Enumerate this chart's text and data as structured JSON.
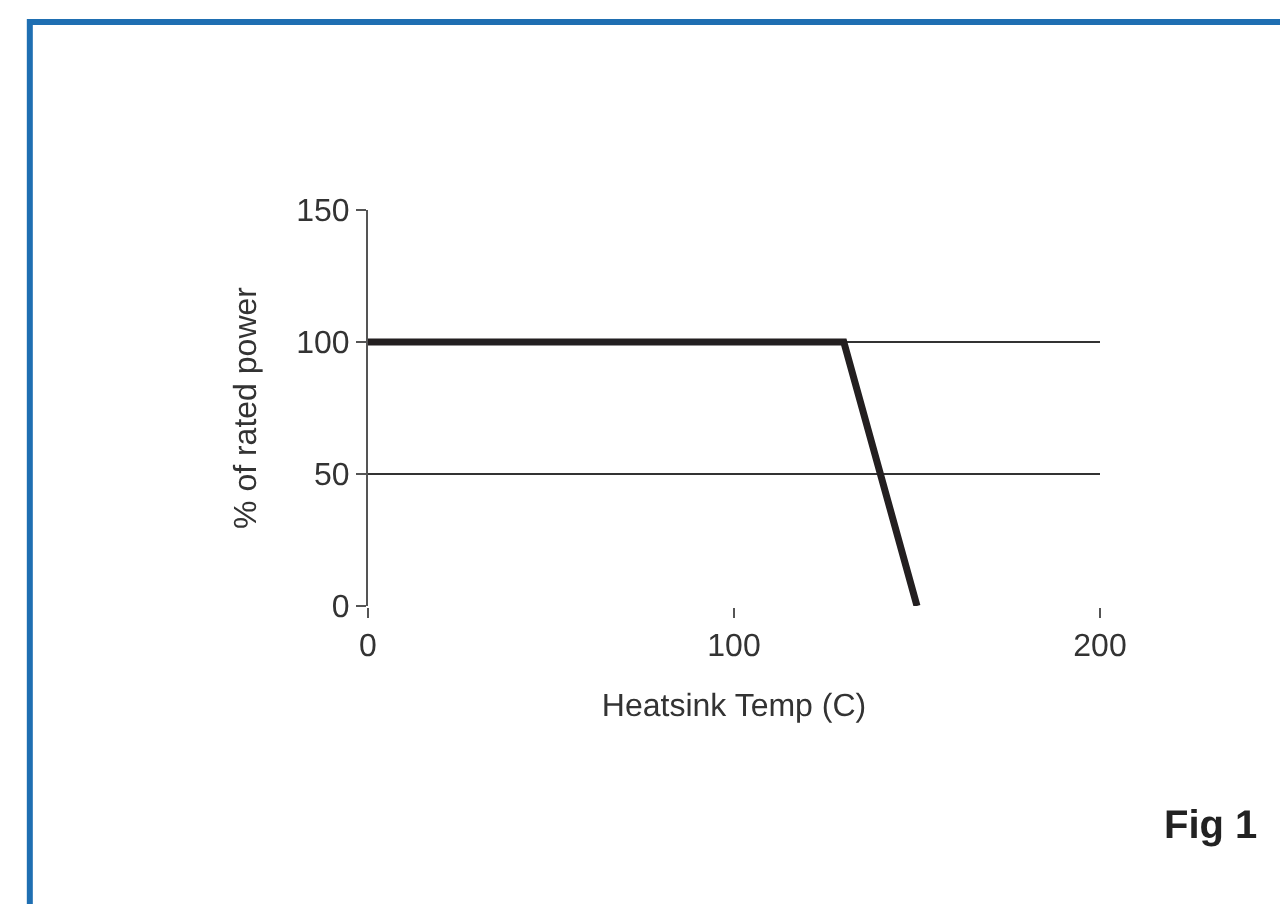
{
  "chart_data": {
    "type": "line",
    "xlabel": "Heatsink Temp (C)",
    "ylabel": "% of rated power",
    "x": [
      0,
      130,
      150
    ],
    "series": [
      {
        "color": "#231f20",
        "values": [
          100,
          100,
          0
        ]
      }
    ],
    "xlim": [
      0,
      200
    ],
    "xticks": [
      0,
      100,
      200
    ],
    "ylim": [
      0,
      150
    ],
    "yticks": [
      0,
      50,
      100,
      150
    ],
    "grid": "y",
    "marker": "none",
    "line_style": "solid",
    "annotations": [
      "Fig 1"
    ]
  }
}
